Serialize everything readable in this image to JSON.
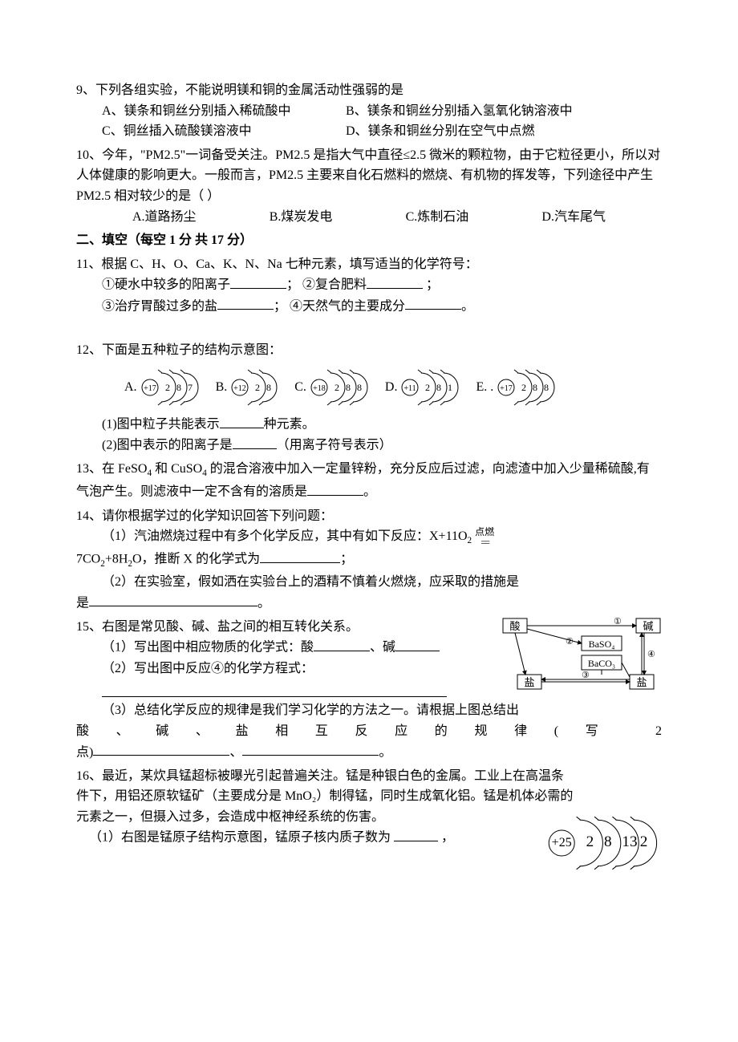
{
  "q9": {
    "stem": "9、下列各组实验，不能说明镁和铜的金属活动性强弱的是",
    "optA": "A、镁条和铜丝分别插入稀硫酸中",
    "optB": "B、镁条和铜丝分别插入氢氧化钠溶液中",
    "optC": "C、铜丝插入硫酸镁溶液中",
    "optD": "D、镁条和铜丝分别在空气中点燃"
  },
  "q10": {
    "stem": "10、今年，\"PM2.5\"一词备受关注。PM2.5 是指大气中直径≤2.5 微米的颗粒物，由于它粒径更小，所以对人体健康的影响更大。一般而言，PM2.5 主要来自化石燃料的燃烧、有机物的挥发等，下列途径中产生 PM2.5 相对较少的是（   ）",
    "optA": "A.道路扬尘",
    "optB": "B.煤炭发电",
    "optC": "C.炼制石油",
    "optD": "D.汽车尾气"
  },
  "section2": "二、填空（每空 1 分 共 17 分）",
  "q11": {
    "stem": "11、根据 C、H、O、Ca、K、N、Na 七种元素，填写适当的化学符号：",
    "l1a": "①硬水中较多的阳离子",
    "l1b": "；  ②复合肥料",
    "l1c": "  ；",
    "l2a": "③治疗胃酸过多的盐",
    "l2b": "；  ④天然气的主要成分",
    "l2c": "。"
  },
  "q12": {
    "stem": "12、下面是五种粒子的结构示意图：",
    "atoms": [
      {
        "label": "A.",
        "center": "+17",
        "shells": [
          "2",
          "8",
          "7"
        ]
      },
      {
        "label": "B.",
        "center": "+12",
        "shells": [
          "2",
          "8"
        ]
      },
      {
        "label": "C.",
        "center": "+18",
        "shells": [
          "2",
          "8",
          "8"
        ]
      },
      {
        "label": "D.",
        "center": "+11",
        "shells": [
          "2",
          "8",
          "1"
        ]
      },
      {
        "label": "E.  .",
        "center": "+17",
        "shells": [
          "2",
          "8",
          "8"
        ]
      }
    ],
    "sub1a": "(1)图中粒子共能表示",
    "sub1b": "种元素。",
    "sub2a": "(2)图中表示的阳离子是",
    "sub2b": "（用离子符号表示）"
  },
  "q13": {
    "pre": "13、在 FeSO",
    "mid1": " 和 CuSO",
    "mid2": " 的混合溶液中加入一定量锌粉，充分反应后过滤，向滤渣中加入少量稀硫酸,有气泡产生。则滤液中一定不含有的溶质是",
    "end": "。"
  },
  "q14": {
    "stem": "14、请你根据学过的化学知识回答下列问题：",
    "s1a": "（1）汽油燃烧过程中有多个化学反应，其中有如下反应：X+11O",
    "s1_cond": "点燃",
    "s1b_pre": "7CO",
    "s1b_mid": "+8H",
    "s1b_post": "O，推断 X 的化学式为",
    "s1b_end": "；",
    "s2a": "（2）在实验室，假如洒在实验台上的酒精不慎着火燃烧，应采取的措施是",
    "s2b": "。"
  },
  "q15": {
    "stem": "15、右图是常见酸、碱、盐之间的相互转化关系。",
    "s1": "（1）写出图中相应物质的化学式：酸",
    "s1mid": "、碱",
    "s2": "（2）写出图中反应④的化学方程式：",
    "s3pre": "（3）总结化学反应的规律是我们学习化学的方法之一。请根据上图总结出",
    "s3sparse": "酸、碱、盐相互反应的规律(写",
    "s3num": "2",
    "s3end": "点)",
    "s3sep": "、",
    "s3dot": "。",
    "diagram": {
      "acid": "酸",
      "base": "碱",
      "baso4": "BaSO₄",
      "baco3": "BaCO₃",
      "salt": "盐",
      "circ1": "①",
      "circ2": "②",
      "circ3": "③",
      "circ4": "④"
    }
  },
  "q16": {
    "stem": "16、最近，某炊具锰超标被曝光引起普遍关注。锰是种银白色的金属。工业上在高温条件下，用铝还原软锰矿（主要成分是 MnO₂）制得锰，同时生成氧化铝。锰是机体必需的元素之一，但摄入过多，会造成中枢神经系统的伤害。",
    "s1": "（1）右图是锰原子结构示意图，锰原子核内质子数为 ",
    "s1end": " ，",
    "atom": {
      "center": "+25",
      "shells": [
        "2",
        "8",
        "13",
        "2"
      ]
    }
  },
  "svg": {
    "arc_stroke": "#000000",
    "arc_width": 1
  }
}
